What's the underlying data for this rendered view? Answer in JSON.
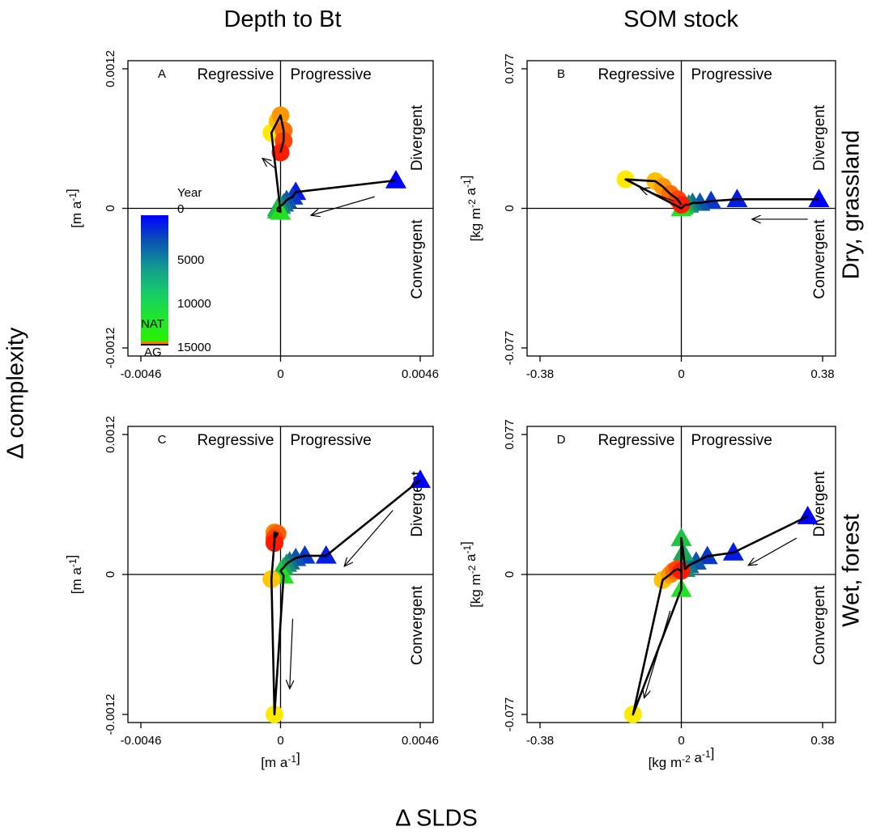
{
  "figure": {
    "column_titles": [
      "Depth to Bt",
      "SOM stock"
    ],
    "row_labels": [
      "Dry, grassland",
      "Wet, forest"
    ],
    "y_axis_title": "Δ complexity",
    "x_axis_title": "Δ SLDS"
  },
  "legend": {
    "title": "Year",
    "ticks": [
      "0",
      "5000",
      "10000",
      "15000"
    ],
    "tick_values": [
      0,
      5000,
      10000,
      15000
    ],
    "nat_label": "NAT",
    "ag_label": "AG",
    "colors": [
      "#0000ff",
      "#0a50b4",
      "#129691",
      "#18c86e",
      "#1ee632",
      "#28f000"
    ]
  },
  "colors": {
    "nat_start": "#0000ff",
    "nat_end": "#22e022",
    "ag_start": "#ffea00",
    "ag_end": "#ff1a00",
    "path": "#000000"
  },
  "chart_data": [
    {
      "type": "scatter",
      "panel": "A",
      "column": "Depth to Bt",
      "row": "Dry, grassland",
      "x_unit": "[m a-1]",
      "y_unit": "[m a-1]",
      "show_x_unit": false,
      "xlim": [
        -0.0046,
        0.0046
      ],
      "ylim": [
        -0.0012,
        0.0012
      ],
      "xticks": [
        "-0.0046",
        "0",
        "0.0046"
      ],
      "yticks": [
        "-0.0012",
        "0",
        "0.0012"
      ],
      "quadrant_labels": {
        "left": "Regressive",
        "right": "Progressive",
        "top": "Divergent",
        "bottom": "Convergent"
      },
      "nat_x": [
        0.0038,
        0.0005,
        0.0004,
        0.0002,
        0.0001,
        0.0,
        -0.0001,
        -0.0001,
        0.0
      ],
      "nat_y": [
        0.00024,
        0.00014,
        0.0001,
        7e-05,
        4e-05,
        2e-05,
        0.0,
        -2e-05,
        -3e-05
      ],
      "ag_x": [
        -0.0003,
        -0.0001,
        0.0,
        0.0001,
        0.0001,
        0.0
      ],
      "ag_y": [
        0.00065,
        0.00075,
        0.0008,
        0.00067,
        0.00058,
        0.00048
      ],
      "arrows": [
        {
          "from": [
            0.0031,
            0.0001
          ],
          "to": [
            0.001,
            -6e-05
          ]
        },
        {
          "from": [
            -0.0002,
            0.00035
          ],
          "to": [
            -0.0006,
            0.00043
          ]
        }
      ]
    },
    {
      "type": "scatter",
      "panel": "B",
      "column": "SOM stock",
      "row": "Dry, grassland",
      "x_unit": "[kg m-2 a-1]",
      "y_unit": "[kg m-2 a-1]",
      "show_x_unit": false,
      "xlim": [
        -0.38,
        0.38
      ],
      "ylim": [
        -0.077,
        0.077
      ],
      "xticks": [
        "-0.38",
        "0",
        "0.38"
      ],
      "yticks": [
        "-0.077",
        "0",
        "0.077"
      ],
      "quadrant_labels": {
        "left": "Regressive",
        "right": "Progressive",
        "top": "Divergent",
        "bottom": "Convergent"
      },
      "nat_x": [
        0.37,
        0.15,
        0.08,
        0.05,
        0.03,
        0.02,
        0.01,
        0.005,
        0.0
      ],
      "nat_y": [
        0.005,
        0.005,
        0.004,
        0.003,
        0.003,
        0.002,
        0.002,
        0.001,
        0.0
      ],
      "ag_x": [
        -0.15,
        -0.07,
        -0.05,
        -0.03,
        -0.01,
        0.0
      ],
      "ag_y": [
        0.016,
        0.015,
        0.012,
        0.008,
        0.005,
        0.002
      ],
      "arrows": [
        {
          "from": [
            0.34,
            -0.006
          ],
          "to": [
            0.19,
            -0.006
          ]
        },
        {
          "from": [
            -0.02,
            0.004
          ],
          "to": [
            -0.11,
            0.011
          ]
        }
      ]
    },
    {
      "type": "scatter",
      "panel": "C",
      "column": "Depth to Bt",
      "row": "Wet, forest",
      "x_unit": "[m a-1]",
      "y_unit": "[m a-1]",
      "show_x_unit": true,
      "xlim": [
        -0.0046,
        0.0046
      ],
      "ylim": [
        -0.0012,
        0.0012
      ],
      "xticks": [
        "-0.0046",
        "0",
        "0.0046"
      ],
      "yticks": [
        "-0.0012",
        "0",
        "0.0012"
      ],
      "quadrant_labels": {
        "left": "Regressive",
        "right": "Progressive",
        "top": "Divergent",
        "bottom": "Convergent"
      },
      "nat_x": [
        0.0046,
        0.0015,
        0.0008,
        0.0005,
        0.0003,
        0.0002,
        0.0001,
        0.0,
        0.0001
      ],
      "nat_y": [
        0.00081,
        0.00016,
        0.00016,
        0.00014,
        0.00011,
        9e-05,
        6e-05,
        3e-05,
        -1e-05
      ],
      "ag_x": [
        -0.0003,
        -0.0002,
        -0.0002,
        -0.0001,
        -0.0002,
        -0.0002
      ],
      "ag_y": [
        -4e-05,
        0.00029,
        0.00036,
        0.00035,
        0.00031,
        0.00027
      ],
      "ag_extreme": {
        "x": -0.0002,
        "y": -0.0012
      },
      "arrows": [
        {
          "from": [
            0.0037,
            0.00055
          ],
          "to": [
            0.0021,
            7e-05
          ]
        },
        {
          "from": [
            0.0004,
            -0.00038
          ],
          "to": [
            0.0003,
            -0.00098
          ]
        }
      ]
    },
    {
      "type": "scatter",
      "panel": "D",
      "column": "SOM stock",
      "row": "Wet, forest",
      "x_unit": "[kg m-2 a-1]",
      "y_unit": "[kg m-2 a-1]",
      "show_x_unit": true,
      "xlim": [
        -0.38,
        0.38
      ],
      "ylim": [
        -0.077,
        0.077
      ],
      "xticks": [
        "-0.38",
        "0",
        "0.38"
      ],
      "yticks": [
        "-0.077",
        "0",
        "0.077"
      ],
      "quadrant_labels": {
        "left": "Regressive",
        "right": "Progressive",
        "top": "Divergent",
        "bottom": "Convergent"
      },
      "nat_x": [
        0.34,
        0.14,
        0.07,
        0.04,
        0.02,
        0.01,
        0.005,
        0.0,
        0.0
      ],
      "nat_y": [
        0.032,
        0.012,
        0.01,
        0.007,
        0.005,
        0.003,
        0.012,
        0.02,
        -0.008
      ],
      "ag_x": [
        -0.13,
        -0.05,
        -0.03,
        -0.02,
        -0.01,
        0.0
      ],
      "ag_y": [
        -0.077,
        -0.003,
        0.0,
        0.002,
        0.003,
        0.002
      ],
      "arrows": [
        {
          "from": [
            0.31,
            0.02
          ],
          "to": [
            0.18,
            0.005
          ]
        },
        {
          "from": [
            -0.03,
            -0.02
          ],
          "to": [
            -0.1,
            -0.068
          ]
        }
      ]
    }
  ]
}
